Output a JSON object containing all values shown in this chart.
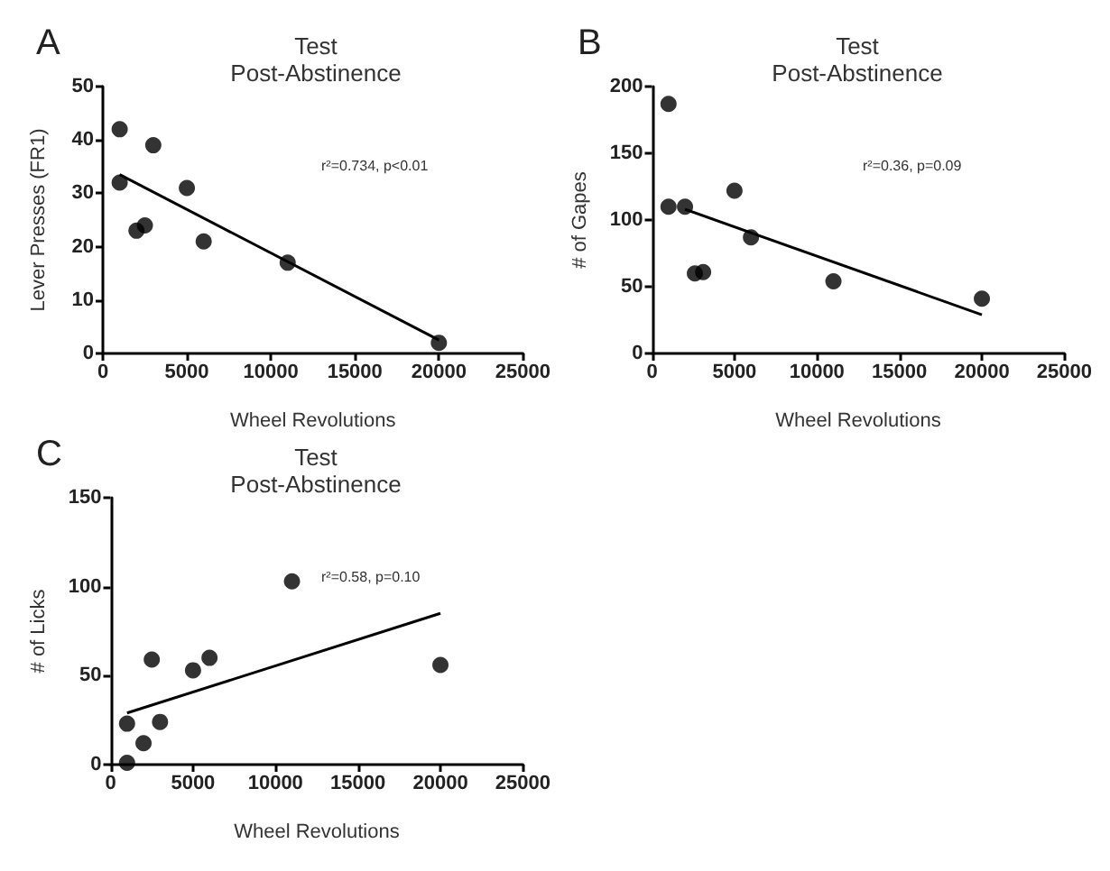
{
  "chart_data": [
    {
      "type": "scatter",
      "title": "Test",
      "subtitle": "Post-Abstinence",
      "xlabel": "Wheel Revolutions",
      "ylabel": "Lever Presses (FR1)",
      "annotations": [
        "A",
        "r²=0.734, p<0.01"
      ],
      "xlim": [
        0,
        25000
      ],
      "xticks": [
        0,
        5000,
        10000,
        15000,
        20000,
        25000
      ],
      "ylim": [
        0,
        50
      ],
      "yticks": [
        0,
        10,
        20,
        30,
        40,
        50
      ],
      "marker": "circle",
      "series": [
        {
          "color": "#000000",
          "x": [
            1000,
            1000,
            2000,
            2500,
            3000,
            5000,
            6000,
            11000,
            20000
          ],
          "values": [
            42,
            32,
            23,
            24,
            39,
            31,
            21,
            17,
            2
          ]
        },
        {
          "type": "line",
          "line_style": "solid",
          "marker": "none",
          "color": "#000000",
          "x": [
            1000,
            20000
          ],
          "values": [
            33.5,
            2.5
          ]
        }
      ]
    },
    {
      "type": "scatter",
      "title": "Test",
      "subtitle": "Post-Abstinence",
      "xlabel": "Wheel Revolutions",
      "ylabel": "# of Gapes",
      "annotations": [
        "B",
        "r²=0.36, p=0.09"
      ],
      "xlim": [
        0,
        25000
      ],
      "xticks": [
        0,
        5000,
        10000,
        15000,
        20000,
        25000
      ],
      "ylim": [
        0,
        200
      ],
      "yticks": [
        0,
        50,
        100,
        150,
        200
      ],
      "marker": "circle",
      "series": [
        {
          "color": "#000000",
          "x": [
            1000,
            1000,
            2000,
            2600,
            3100,
            5000,
            6000,
            11000,
            20000
          ],
          "values": [
            187,
            110,
            110,
            60,
            61,
            122,
            87,
            54,
            41
          ]
        },
        {
          "type": "line",
          "line_style": "solid",
          "marker": "none",
          "color": "#000000",
          "x": [
            2000,
            20000
          ],
          "values": [
            108,
            29
          ]
        }
      ]
    },
    {
      "type": "scatter",
      "title": "Test",
      "subtitle": "Post-Abstinence",
      "xlabel": "Wheel Revolutions",
      "ylabel": "# of Licks",
      "annotations": [
        "C",
        "r²=0.58, p=0.10"
      ],
      "xlim": [
        0,
        25000
      ],
      "xticks": [
        0,
        5000,
        10000,
        15000,
        20000,
        25000
      ],
      "ylim": [
        0,
        150
      ],
      "yticks": [
        0,
        50,
        100,
        150
      ],
      "marker": "circle",
      "series": [
        {
          "color": "#000000",
          "x": [
            1000,
            1000,
            2000,
            2500,
            3000,
            5000,
            6000,
            11000,
            20000
          ],
          "values": [
            23,
            1,
            12,
            59,
            24,
            53,
            60,
            103,
            56
          ]
        },
        {
          "type": "line",
          "line_style": "solid",
          "marker": "none",
          "color": "#000000",
          "x": [
            1000,
            20000
          ],
          "values": [
            29,
            85
          ]
        }
      ]
    }
  ]
}
